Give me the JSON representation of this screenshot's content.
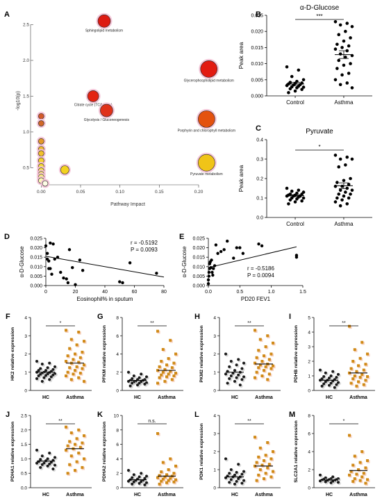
{
  "panels": {
    "A": {
      "letter": "A",
      "chart_data": {
        "type": "scatter",
        "xlabel": "Pathway Impact",
        "ylabel": "-log10(p)",
        "xlim": [
          -0.01,
          0.23
        ],
        "ylim": [
          0.3,
          2.65
        ],
        "xticks": [
          "0.00",
          "0.05",
          "0.10",
          "0.15",
          "0.20"
        ],
        "yticks": [
          "0.5",
          "1.0",
          "1.5",
          "2.0",
          "2.5"
        ],
        "points": [
          {
            "x": 0.08,
            "y": 2.55,
            "r": 9,
            "color": "#dd1b12",
            "label": "Sphingolipid metabolism"
          },
          {
            "x": 0.213,
            "y": 1.88,
            "r": 12,
            "color": "#e21b12",
            "label": "Glycerophospholipid metabolism"
          },
          {
            "x": 0.066,
            "y": 1.5,
            "r": 8,
            "color": "#e32312",
            "label": "Citrate cycle (TCA cycle)"
          },
          {
            "x": 0.083,
            "y": 1.3,
            "r": 9,
            "color": "#e0321a",
            "label": "Glycolysis / Gluconeogenesis"
          },
          {
            "x": 0.21,
            "y": 1.18,
            "r": 12,
            "color": "#e4520f",
            "label": "Porphyrin and chlorophyll metabolism"
          },
          {
            "x": 0.21,
            "y": 0.57,
            "r": 12,
            "color": "#f0c418",
            "label": "Pyruvate metabolism"
          },
          {
            "x": 0.03,
            "y": 0.47,
            "r": 6,
            "color": "#f3d21f",
            "label": ""
          },
          {
            "x": 0.0,
            "y": 1.22,
            "r": 4,
            "color": "#d45a2b",
            "label": ""
          },
          {
            "x": 0.0,
            "y": 1.12,
            "r": 4,
            "color": "#d26828",
            "label": ""
          },
          {
            "x": 0.0,
            "y": 0.87,
            "r": 4,
            "color": "#e49a2a",
            "label": ""
          },
          {
            "x": 0.0,
            "y": 0.76,
            "r": 4,
            "color": "#eeb82a",
            "label": ""
          },
          {
            "x": 0.0,
            "y": 0.7,
            "r": 4,
            "color": "#f2c12b",
            "label": ""
          },
          {
            "x": 0.0,
            "y": 0.6,
            "r": 4,
            "color": "#f5d22f",
            "label": ""
          },
          {
            "x": 0.0,
            "y": 0.52,
            "r": 4,
            "color": "#f6dc33",
            "label": ""
          },
          {
            "x": 0.0,
            "y": 0.46,
            "r": 4,
            "color": "#f8e43b",
            "label": ""
          },
          {
            "x": 0.0,
            "y": 0.41,
            "r": 4,
            "color": "#f9ec56",
            "label": ""
          },
          {
            "x": 0.0,
            "y": 0.37,
            "r": 4,
            "color": "#fbf27a",
            "label": ""
          },
          {
            "x": 0.0,
            "y": 0.32,
            "r": 4,
            "color": "#fdf9b8",
            "label": ""
          },
          {
            "x": 0.005,
            "y": 0.28,
            "r": 4,
            "color": "#fefde6",
            "label": ""
          }
        ]
      }
    },
    "B": {
      "letter": "B",
      "chart_data": {
        "type": "scatter",
        "title": "α-D-Glucose",
        "ylabel": "Peak area",
        "categories": [
          "Control",
          "Asthma"
        ],
        "ylim": [
          0,
          0.025
        ],
        "yticks": [
          "0.000",
          "0.005",
          "0.010",
          "0.015",
          "0.020",
          "0.025"
        ],
        "significance": "***",
        "series": [
          {
            "values": [
              0.009,
              0.008,
              0.006,
              0.005,
              0.0045,
              0.0042,
              0.004,
              0.0039,
              0.0037,
              0.0035,
              0.0034,
              0.0032,
              0.003,
              0.0028,
              0.0027,
              0.0025,
              0.0022,
              0.002,
              0.0015,
              0.001
            ],
            "mean": 0.0037,
            "sem": 0.0005
          },
          {
            "values": [
              0.023,
              0.0225,
              0.022,
              0.0215,
              0.02,
              0.019,
              0.018,
              0.017,
              0.016,
              0.0155,
              0.015,
              0.0145,
              0.014,
              0.013,
              0.0125,
              0.012,
              0.011,
              0.01,
              0.0095,
              0.0085,
              0.007,
              0.0065,
              0.005,
              0.004,
              0.0035,
              0.0025
            ],
            "mean": 0.0128,
            "sem": 0.0012
          }
        ]
      }
    },
    "C": {
      "letter": "C",
      "chart_data": {
        "type": "scatter",
        "title": "Pyruvate",
        "ylabel": "Peak area",
        "categories": [
          "Control",
          "Asthma"
        ],
        "ylim": [
          0,
          0.4
        ],
        "yticks": [
          "0.0",
          "0.1",
          "0.2",
          "0.3",
          "0.4"
        ],
        "significance": "*",
        "series": [
          {
            "values": [
              0.15,
              0.14,
              0.135,
              0.13,
              0.125,
              0.12,
              0.12,
              0.115,
              0.115,
              0.11,
              0.11,
              0.11,
              0.105,
              0.1,
              0.1,
              0.095,
              0.09,
              0.085,
              0.08,
              0.07
            ],
            "mean": 0.112,
            "sem": 0.005
          },
          {
            "values": [
              0.32,
              0.31,
              0.3,
              0.3,
              0.27,
              0.26,
              0.2,
              0.19,
              0.18,
              0.17,
              0.16,
              0.16,
              0.15,
              0.14,
              0.14,
              0.13,
              0.12,
              0.12,
              0.11,
              0.1,
              0.1,
              0.09,
              0.08,
              0.07,
              0.06
            ],
            "mean": 0.163,
            "sem": 0.015
          }
        ]
      }
    },
    "D": {
      "letter": "D",
      "chart_data": {
        "type": "scatter",
        "xlabel": "Eosinophil% in sputum",
        "ylabel": "α-D-Glucose",
        "xlim": [
          0,
          80
        ],
        "ylim": [
          0,
          0.025
        ],
        "xticks": [
          "0",
          "20",
          "40",
          "60",
          "80"
        ],
        "yticks": [
          "0.000",
          "0.005",
          "0.010",
          "0.015",
          "0.020",
          "0.025"
        ],
        "annotation": [
          "r = -0.5192",
          "P = 0.0093"
        ],
        "x": [
          0,
          1,
          1,
          2,
          2,
          3,
          4,
          5,
          8,
          10,
          12,
          14,
          15,
          16,
          18,
          20,
          23,
          25,
          50,
          52,
          57,
          75,
          3,
          6
        ],
        "y": [
          0.021,
          0.017,
          0.014,
          0.013,
          0.009,
          0.009,
          0.006,
          0.022,
          0.015,
          0.007,
          0.004,
          0.0035,
          0.0015,
          0.019,
          0.0095,
          0.0005,
          0.0135,
          0.008,
          0.002,
          0.0015,
          0.012,
          0.0065,
          0.0225,
          0.014
        ],
        "fit": [
          [
            0,
            0.0155
          ],
          [
            80,
            0.0045
          ]
        ]
      }
    },
    "E": {
      "letter": "E",
      "chart_data": {
        "type": "scatter",
        "xlabel": "PD20 FEV1",
        "ylabel": "α-D-Glucose",
        "xlim": [
          0,
          1.5
        ],
        "ylim": [
          0,
          0.025
        ],
        "xticks": [
          "0.0",
          "0.5",
          "1.0",
          "1.5"
        ],
        "yticks": [
          "0.000",
          "0.005",
          "0.010",
          "0.015",
          "0.020",
          "0.025"
        ],
        "annotation": [
          "r = -0.5186",
          "P = 0.0094"
        ],
        "x": [
          0.0,
          0.0,
          0.01,
          0.01,
          0.02,
          0.02,
          0.03,
          0.04,
          0.05,
          0.06,
          0.07,
          0.08,
          0.1,
          0.12,
          0.15,
          0.2,
          0.25,
          0.3,
          0.4,
          0.45,
          0.5,
          0.55,
          0.8,
          0.85,
          1.4,
          1.4
        ],
        "y": [
          0.001,
          0.003,
          0.005,
          0.007,
          0.009,
          0.0115,
          0.0125,
          0.0095,
          0.0135,
          0.007,
          0.0055,
          0.009,
          0.0105,
          0.0215,
          0.017,
          0.018,
          0.019,
          0.0235,
          0.0145,
          0.02,
          0.02,
          0.017,
          0.022,
          0.021,
          0.016,
          0.015
        ],
        "fit": [
          [
            0,
            0.0095
          ],
          [
            1.4,
            0.0205
          ]
        ]
      }
    },
    "F": {
      "letter": "F",
      "ylabel": "HK2 relative expression",
      "categories": [
        "HC",
        "Asthma"
      ],
      "ylim": [
        0,
        4
      ],
      "yticks": [
        "0",
        "1",
        "2",
        "3",
        "4"
      ],
      "significance": "*",
      "hc": [
        1.6,
        1.5,
        1.45,
        1.3,
        1.25,
        1.2,
        1.15,
        1.1,
        1.1,
        1.05,
        1.0,
        1.0,
        0.98,
        0.95,
        0.92,
        0.9,
        0.88,
        0.85,
        0.82,
        0.8,
        0.75,
        0.7,
        0.65,
        0.6,
        0.5
      ],
      "asthma": [
        3.3,
        3.2,
        2.8,
        2.7,
        2.5,
        2.3,
        2.1,
        2.0,
        1.9,
        1.8,
        1.7,
        1.6,
        1.55,
        1.5,
        1.4,
        1.3,
        1.25,
        1.2,
        1.1,
        1.0,
        0.95,
        0.9,
        0.8,
        0.7,
        0.6,
        0.5
      ],
      "hc_mean": 1.0,
      "asthma_mean": 1.5
    },
    "G": {
      "letter": "G",
      "ylabel": "PFKM relative expression",
      "categories": [
        "HC",
        "Asthma"
      ],
      "ylim": [
        0,
        8
      ],
      "yticks": [
        "0",
        "2",
        "4",
        "6",
        "8"
      ],
      "significance": "**",
      "hc": [
        2.0,
        1.8,
        1.6,
        1.5,
        1.4,
        1.3,
        1.2,
        1.2,
        1.1,
        1.1,
        1.0,
        1.0,
        0.95,
        0.9,
        0.85,
        0.8,
        0.8,
        0.7,
        0.6,
        0.5
      ],
      "asthma": [
        6.5,
        5.5,
        4.5,
        4.0,
        3.5,
        3.2,
        3.0,
        2.8,
        2.6,
        2.5,
        2.3,
        2.2,
        2.1,
        2.0,
        1.9,
        1.8,
        1.7,
        1.6,
        1.5,
        1.4,
        1.2,
        1.0,
        0.8
      ],
      "hc_mean": 1.1,
      "asthma_mean": 2.2
    },
    "H": {
      "letter": "H",
      "ylabel": "PKM2 relative expression",
      "categories": [
        "HC",
        "Asthma"
      ],
      "ylim": [
        0,
        4
      ],
      "yticks": [
        "0",
        "1",
        "2",
        "3",
        "4"
      ],
      "significance": "**",
      "hc": [
        2.0,
        1.7,
        1.6,
        1.5,
        1.4,
        1.3,
        1.2,
        1.1,
        1.05,
        1.0,
        0.95,
        0.9,
        0.85,
        0.8,
        0.75,
        0.7,
        0.65,
        0.6,
        0.5,
        0.4,
        0.3
      ],
      "asthma": [
        3.3,
        3.0,
        2.8,
        2.6,
        2.4,
        2.2,
        2.0,
        1.9,
        1.8,
        1.7,
        1.6,
        1.5,
        1.45,
        1.4,
        1.35,
        1.3,
        1.25,
        1.2,
        1.1,
        1.0,
        0.9,
        0.8,
        0.7,
        0.6
      ],
      "hc_mean": 1.0,
      "asthma_mean": 1.45
    },
    "I": {
      "letter": "I",
      "ylabel": "PDHB relative expression",
      "categories": [
        "HC",
        "Asthma"
      ],
      "ylim": [
        0,
        5
      ],
      "yticks": [
        "0",
        "1",
        "2",
        "3",
        "4",
        "5"
      ],
      "significance": "**",
      "hc": [
        1.4,
        1.3,
        1.2,
        1.1,
        1.0,
        0.95,
        0.9,
        0.85,
        0.8,
        0.75,
        0.7,
        0.7,
        0.65,
        0.6,
        0.55,
        0.5,
        0.45,
        0.4,
        0.35,
        0.3,
        0.2
      ],
      "asthma": [
        4.4,
        3.3,
        2.8,
        2.5,
        2.2,
        2.0,
        1.8,
        1.7,
        1.5,
        1.4,
        1.3,
        1.2,
        1.1,
        1.0,
        0.95,
        0.9,
        0.8,
        0.7,
        0.6,
        0.5,
        0.4,
        0.3
      ],
      "hc_mean": 0.7,
      "asthma_mean": 1.2
    },
    "J": {
      "letter": "J",
      "ylabel": "PDHA1 relative expression",
      "categories": [
        "HC",
        "Asthma"
      ],
      "ylim": [
        0,
        2.5
      ],
      "yticks": [
        "0.0",
        "0.5",
        "1.0",
        "1.5",
        "2.0",
        "2.5"
      ],
      "significance": "**",
      "hc": [
        1.3,
        1.2,
        1.1,
        1.05,
        1.0,
        0.98,
        0.95,
        0.93,
        0.9,
        0.88,
        0.85,
        0.85,
        0.82,
        0.8,
        0.78,
        0.75,
        0.7,
        0.65
      ],
      "asthma": [
        2.1,
        2.0,
        1.9,
        1.8,
        1.7,
        1.6,
        1.55,
        1.5,
        1.45,
        1.4,
        1.35,
        1.3,
        1.2,
        1.1,
        1.0,
        0.9,
        0.8,
        0.7,
        0.6,
        0.5
      ],
      "hc_mean": 0.92,
      "asthma_mean": 1.35
    },
    "K": {
      "letter": "K",
      "ylabel": "PDHA2 relative expression",
      "categories": [
        "HC",
        "Asthma"
      ],
      "ylim": [
        0,
        10
      ],
      "yticks": [
        "0",
        "2",
        "4",
        "6",
        "8",
        "10"
      ],
      "significance": "n.s.",
      "hc": [
        2.4,
        2.0,
        1.8,
        1.6,
        1.5,
        1.4,
        1.3,
        1.2,
        1.1,
        1.0,
        1.0,
        0.9,
        0.85,
        0.8,
        0.7,
        0.6,
        0.5,
        0.4
      ],
      "asthma": [
        7.5,
        4.0,
        3.5,
        3.0,
        2.5,
        2.2,
        2.0,
        1.8,
        1.7,
        1.6,
        1.5,
        1.4,
        1.3,
        1.2,
        1.1,
        1.0,
        0.9,
        0.8,
        0.7,
        0.5
      ],
      "hc_mean": 1.1,
      "asthma_mean": 1.6
    },
    "L": {
      "letter": "L",
      "ylabel": "PDK1 relative expression",
      "categories": [
        "HC",
        "Asthma"
      ],
      "ylim": [
        0,
        4
      ],
      "yticks": [
        "0",
        "1",
        "2",
        "3",
        "4"
      ],
      "significance": "**",
      "hc": [
        1.6,
        1.3,
        1.0,
        0.9,
        0.85,
        0.8,
        0.75,
        0.7,
        0.65,
        0.6,
        0.6,
        0.55,
        0.5,
        0.45,
        0.4,
        0.35,
        0.3,
        0.25,
        0.2
      ],
      "asthma": [
        2.8,
        2.5,
        2.2,
        2.0,
        1.8,
        1.7,
        1.6,
        1.5,
        1.4,
        1.3,
        1.25,
        1.2,
        1.1,
        1.0,
        0.9,
        0.8,
        0.7,
        0.6,
        0.5,
        0.4
      ],
      "hc_mean": 0.6,
      "asthma_mean": 1.2
    },
    "M": {
      "letter": "M",
      "ylabel": "SLC2A1 relative expression",
      "categories": [
        "HC",
        "Asthma"
      ],
      "ylim": [
        0,
        8
      ],
      "yticks": [
        "0",
        "2",
        "4",
        "6",
        "8"
      ],
      "significance": "*",
      "hc": [
        1.4,
        1.2,
        1.1,
        1.0,
        1.0,
        0.95,
        0.9,
        0.9,
        0.85,
        0.8,
        0.8,
        0.75,
        0.7,
        0.65,
        0.6,
        0.55
      ],
      "asthma": [
        5.8,
        4.0,
        3.5,
        3.0,
        2.8,
        2.5,
        2.2,
        2.0,
        1.8,
        1.6,
        1.5,
        1.4,
        1.2,
        1.0,
        0.9,
        0.8,
        0.7,
        0.5
      ],
      "hc_mean": 0.85,
      "asthma_mean": 1.9
    }
  },
  "colors": {
    "hc": "#1a1a1a",
    "asthma": "#d08a18",
    "hc_bg": "#d9d9d9",
    "asthma_bg": "#f7d2c0"
  }
}
